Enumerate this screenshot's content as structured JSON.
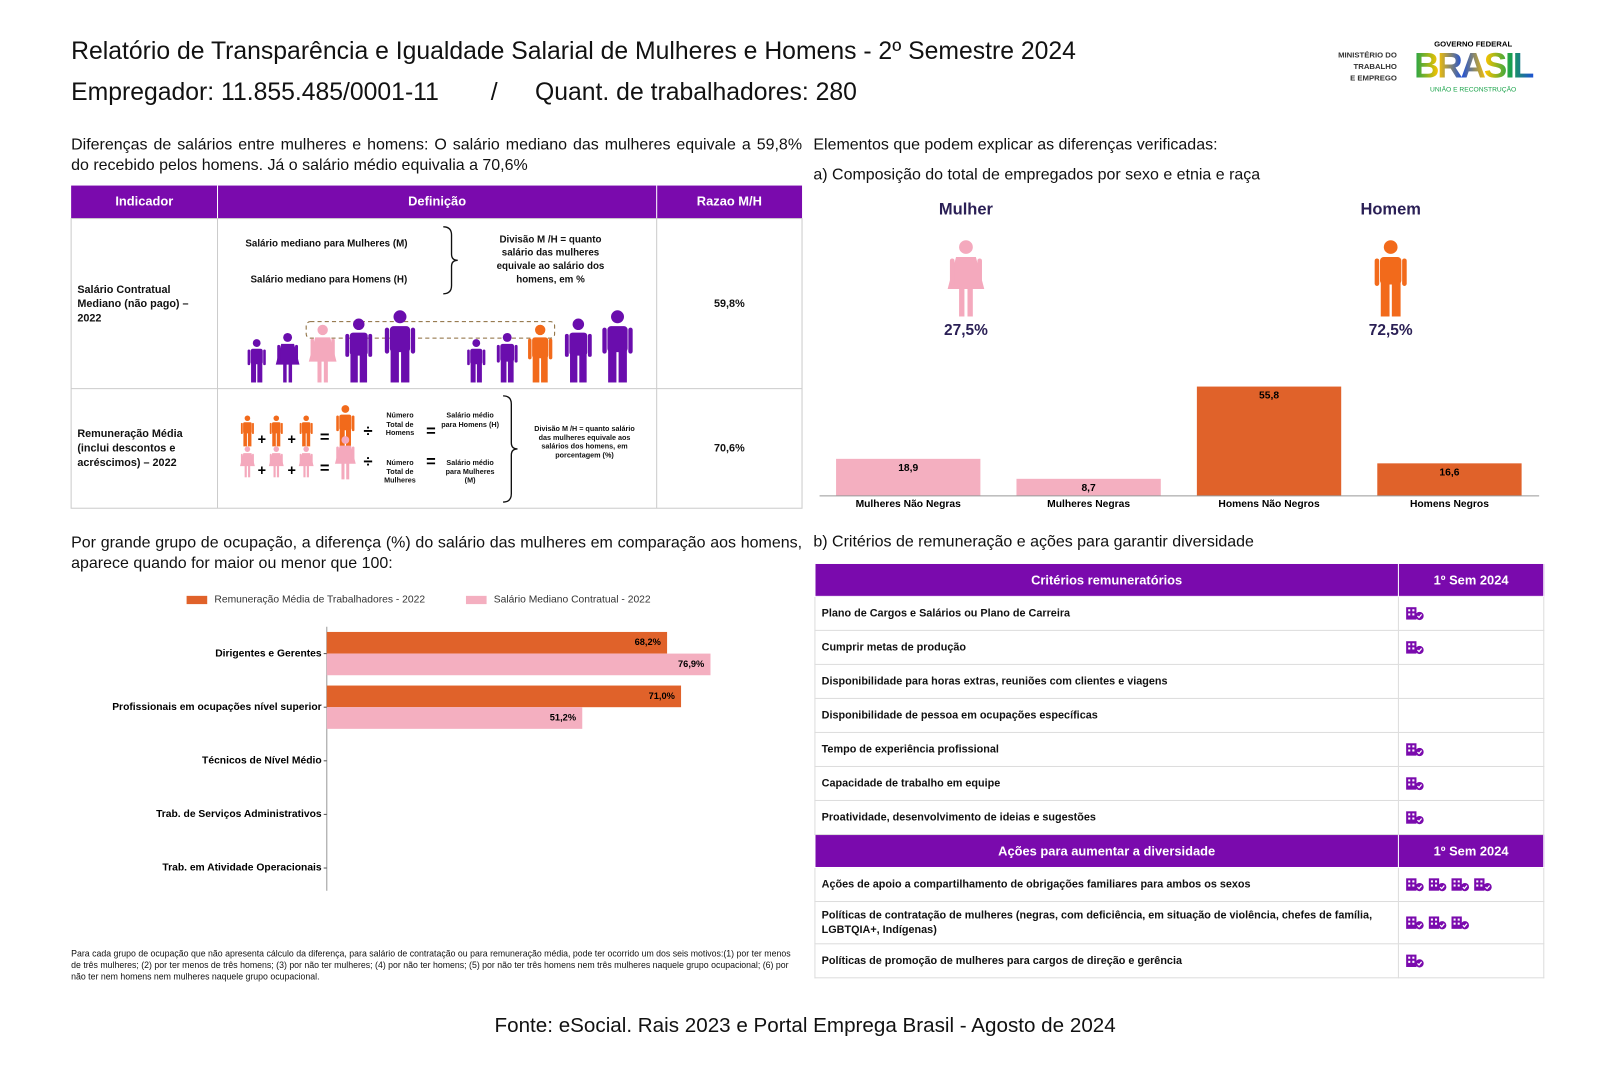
{
  "header": {
    "title": "Relatório de Transparência e Igualdade Salarial de Mulheres e Homens - 2º Semestre 2024",
    "employer": "Empregador: 11.855.485/0001-11",
    "separator": "/",
    "workers": "Quant. de trabalhadores: 280"
  },
  "logo": {
    "ministry": [
      "MINISTÉRIO DO",
      "TRABALHO",
      "E EMPREGO"
    ],
    "government": "GOVERNO FEDERAL",
    "brand": "BRASIL",
    "slogan": "UNIÃO E RECONSTRUÇÃO"
  },
  "intro": "Diferenças de salários entre mulheres e homens: O salário mediano das mulheres equivale a 59,8% do recebido pelos homens. Já o salário médio equivalia a 70,6%",
  "operators": {
    "plus": "+",
    "equals": "=",
    "divide": "÷"
  },
  "indicator_table": {
    "columns": [
      "Indicador",
      "Definição",
      "Razao M/H"
    ],
    "rows": [
      {
        "indicator": "Salário Contratual Mediano (não pago) – 2022",
        "definition": {
          "women": "Salário mediano para Mulheres (M)",
          "men": "Salário mediano para Homens (H)",
          "note": "Divisão M /H = quanto salário das mulheres equivale ao salário dos homens, em %"
        },
        "ratio": "59,8%"
      },
      {
        "indicator": "Remuneração Média (inclui descontos e acréscimos) – 2022",
        "definition": {
          "men_total": "Número Total de Homens",
          "men_result": "Salário médio para Homens (H)",
          "women_total": "Número Total de Mulheres",
          "women_result": "Salário médio para Mulheres (M)",
          "note": "Divisão M /H = quanto salário das mulheres equivale aos salários dos homens, em porcentagem (%)"
        },
        "ratio": "70,6%"
      }
    ]
  },
  "right_heading": "Elementos que podem explicar as diferenças verificadas:",
  "composition_heading": "a) Composição do total de empregados por sexo e etnia e raça",
  "gender_split": [
    {
      "name": "Mulher",
      "share": "27,5%",
      "color": "#f4a9bd"
    },
    {
      "name": "Homem",
      "share": "72,5%",
      "color": "#f26a1b"
    }
  ],
  "occupation_heading": "Por grande grupo de ocupação, a diferença (%) do salário das mulheres em comparação aos homens, aparece quando for maior ou menor que 100:",
  "footnote": "Para cada grupo de ocupação que não apresenta cálculo da diferença, para salário de contratação ou para remuneração média, pode ter ocorrido um dos seis motivos:(1) por ter menos de três mulheres; (2) por ter menos de três homens; (3) por não ter mulheres; (4) por não ter homens; (5) por não ter três homens nem três mulheres naquele grupo ocupacional; (6) por não ter nem homens nem mulheres naquele grupo ocupacional.",
  "criteria_heading": "b) Critérios de remuneração e ações para garantir diversidade",
  "criteria_table": {
    "columns": [
      "Critérios remuneratórios",
      "1º Sem 2024"
    ],
    "rows": [
      {
        "name": "Plano de Cargos e Salários ou Plano de Carreira",
        "icons": 1
      },
      {
        "name": "Cumprir metas de produção",
        "icons": 1
      },
      {
        "name": "Disponibilidade para horas extras, reuniões com clientes e viagens",
        "icons": 0
      },
      {
        "name": "Disponibilidade de pessoa em ocupações específicas",
        "icons": 0
      },
      {
        "name": "Tempo de experiência profissional",
        "icons": 1
      },
      {
        "name": "Capacidade de trabalho em equipe",
        "icons": 1
      },
      {
        "name": "Proatividade, desenvolvimento de ideias e sugestões",
        "icons": 1
      }
    ]
  },
  "actions_table": {
    "columns": [
      "Ações para aumentar a diversidade",
      "1º Sem 2024"
    ],
    "rows": [
      {
        "name": "Ações de apoio a compartilhamento de obrigações familiares para ambos os sexos",
        "icons": 4
      },
      {
        "name": "Políticas de contratação de mulheres (negras, com deficiência, em situação de violência, chefes de família, LGBTQIA+, Indígenas)",
        "icons": 3
      },
      {
        "name": "Políticas de promoção de mulheres para cargos de direção e gerência",
        "icons": 1
      }
    ]
  },
  "source": "Fonte: eSocial. Rais 2023 e Portal Emprega Brasil - Agosto de 2024",
  "chart_data": [
    {
      "type": "bar",
      "categories": [
        "Mulheres Não Negras",
        "Mulheres Negras",
        "Homens Não Negros",
        "Homens Negros"
      ],
      "values": [
        18.9,
        8.7,
        55.8,
        16.6
      ],
      "value_labels": [
        "18,9",
        "8,7",
        "55,8",
        "16,6"
      ],
      "colors": [
        "#f4afc0",
        "#f4afc0",
        "#e0622a",
        "#e0622a"
      ]
    },
    {
      "type": "hbar",
      "categories": [
        "Dirigentes e Gerentes",
        "Profissionais em ocupações nível superior",
        "Técnicos de Nível Médio",
        "Trab. de Serviços Administrativos",
        "Trab. em Atividade Operacionais"
      ],
      "series": [
        {
          "name": "Remuneração Média de Trabalhadores - 2022",
          "color": "#e0622a",
          "values": [
            68.2,
            71.0,
            null,
            null,
            null
          ],
          "value_labels": [
            "68,2%",
            "71,0%",
            null,
            null,
            null
          ]
        },
        {
          "name": "Salário Mediano Contratual - 2022",
          "color": "#f4afc0",
          "values": [
            76.9,
            51.2,
            null,
            null,
            null
          ],
          "value_labels": [
            "76,9%",
            "51,2%",
            null,
            null,
            null
          ]
        }
      ]
    }
  ]
}
